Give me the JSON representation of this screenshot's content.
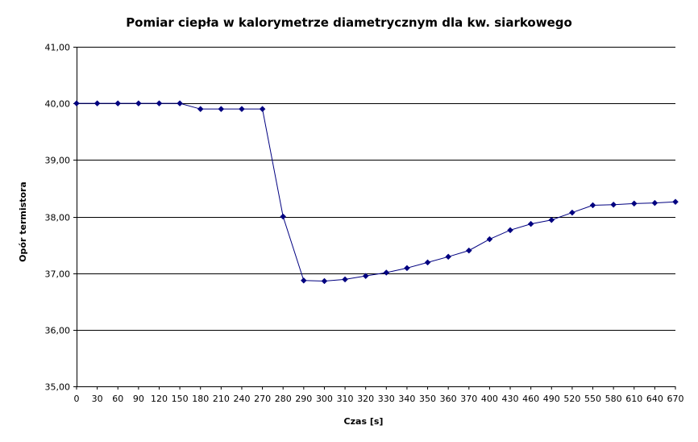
{
  "chart_data": {
    "type": "line",
    "title": "Pomiar ciepła w kalorymetrze diametrycznym dla kw. siarkowego",
    "xlabel": "Czas [s]",
    "ylabel": "Opór termistora",
    "categories": [
      "0",
      "30",
      "60",
      "90",
      "120",
      "150",
      "180",
      "210",
      "240",
      "270",
      "280",
      "290",
      "300",
      "310",
      "320",
      "330",
      "340",
      "350",
      "360",
      "370",
      "400",
      "430",
      "460",
      "490",
      "520",
      "550",
      "580",
      "610",
      "640",
      "670"
    ],
    "series": [
      {
        "values": [
          40.0,
          40.0,
          40.0,
          40.0,
          40.0,
          40.0,
          39.9,
          39.9,
          39.9,
          39.9,
          38.0,
          36.87,
          36.86,
          36.89,
          36.95,
          37.01,
          37.09,
          37.19,
          37.29,
          37.4,
          37.6,
          37.76,
          37.87,
          37.94,
          38.07,
          38.2,
          38.21,
          38.23,
          38.24,
          38.26
        ]
      }
    ],
    "ylim": [
      35,
      41
    ],
    "yticks": [
      "35,00",
      "36,00",
      "37,00",
      "38,00",
      "39,00",
      "40,00",
      "41,00"
    ],
    "grid": "horizontal",
    "legend": "none",
    "line_color": "#000080",
    "marker": "diamond"
  }
}
